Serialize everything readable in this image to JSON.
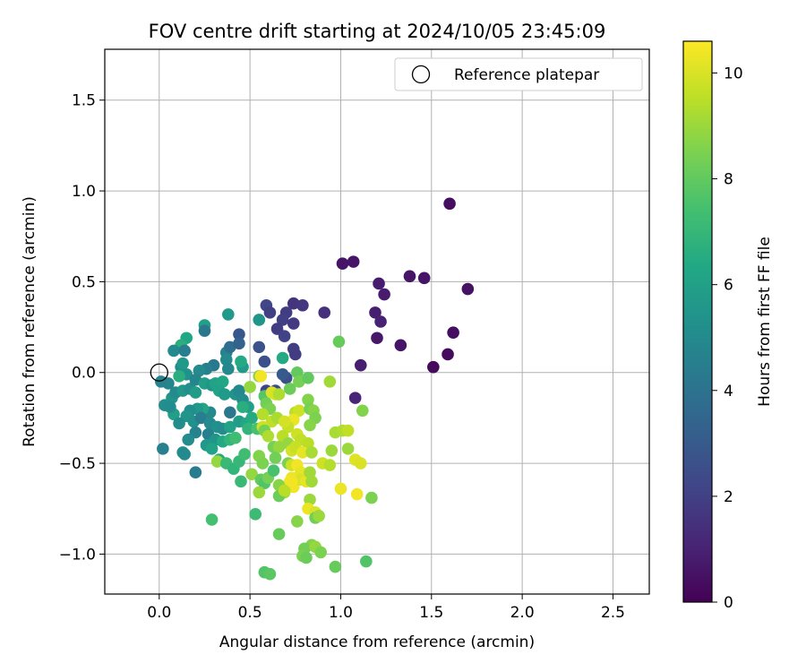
{
  "chart_data": {
    "type": "scatter",
    "title": "FOV centre drift starting at 2024/10/05 23:45:09",
    "xlabel": "Angular distance from reference (arcmin)",
    "ylabel": "Rotation from reference (arcmin)",
    "xlim": [
      -0.3,
      2.7
    ],
    "ylim": [
      -1.22,
      1.78
    ],
    "x_ticks": [
      0.0,
      0.5,
      1.0,
      1.5,
      2.0,
      2.5
    ],
    "x_tick_labels": [
      "0.0",
      "0.5",
      "1.0",
      "1.5",
      "2.0",
      "2.5"
    ],
    "y_ticks": [
      -1.0,
      -0.5,
      0.0,
      0.5,
      1.0,
      1.5
    ],
    "y_tick_labels": [
      "−1.0",
      "−0.5",
      "0.0",
      "0.5",
      "1.0",
      "1.5"
    ],
    "grid": true,
    "legend": {
      "position": "upper right",
      "entries": [
        "Reference platepar"
      ]
    },
    "reference_point": {
      "label": "Reference platepar",
      "x": 0.0,
      "y": 0.0
    },
    "colorbar": {
      "label": "Hours from first FF file",
      "colormap": "viridis",
      "range": [
        0,
        10.6
      ],
      "ticks": [
        0,
        2,
        4,
        6,
        8,
        10
      ],
      "tick_labels": [
        "0",
        "2",
        "4",
        "6",
        "8",
        "10"
      ]
    },
    "points": [
      {
        "x": 1.6,
        "y": 0.93,
        "h": 0.4
      },
      {
        "x": 1.01,
        "y": 0.6,
        "h": 0.6
      },
      {
        "x": 1.07,
        "y": 0.61,
        "h": 0.6
      },
      {
        "x": 1.21,
        "y": 0.49,
        "h": 0.8
      },
      {
        "x": 1.24,
        "y": 0.43,
        "h": 0.8
      },
      {
        "x": 1.38,
        "y": 0.53,
        "h": 0.6
      },
      {
        "x": 1.46,
        "y": 0.52,
        "h": 0.6
      },
      {
        "x": 1.7,
        "y": 0.46,
        "h": 0.5
      },
      {
        "x": 1.19,
        "y": 0.33,
        "h": 0.9
      },
      {
        "x": 1.22,
        "y": 0.28,
        "h": 1.0
      },
      {
        "x": 1.62,
        "y": 0.22,
        "h": 0.4
      },
      {
        "x": 1.2,
        "y": 0.19,
        "h": 0.7
      },
      {
        "x": 1.33,
        "y": 0.15,
        "h": 0.6
      },
      {
        "x": 1.59,
        "y": 0.1,
        "h": 0.3
      },
      {
        "x": 1.51,
        "y": 0.03,
        "h": 0.3
      },
      {
        "x": 1.11,
        "y": 0.04,
        "h": 0.9
      },
      {
        "x": 1.08,
        "y": -0.14,
        "h": 1.1
      },
      {
        "x": 0.91,
        "y": 0.33,
        "h": 1.5
      },
      {
        "x": 0.74,
        "y": 0.38,
        "h": 1.6
      },
      {
        "x": 0.79,
        "y": 0.37,
        "h": 1.7
      },
      {
        "x": 0.59,
        "y": 0.37,
        "h": 2.2
      },
      {
        "x": 0.61,
        "y": 0.33,
        "h": 2.0
      },
      {
        "x": 0.7,
        "y": 0.33,
        "h": 1.9
      },
      {
        "x": 0.68,
        "y": 0.29,
        "h": 2.0
      },
      {
        "x": 0.74,
        "y": 0.27,
        "h": 1.8
      },
      {
        "x": 0.65,
        "y": 0.24,
        "h": 1.9
      },
      {
        "x": 0.69,
        "y": 0.2,
        "h": 2.1
      },
      {
        "x": 0.55,
        "y": 0.29,
        "h": 5.5
      },
      {
        "x": 0.44,
        "y": 0.21,
        "h": 2.9
      },
      {
        "x": 0.55,
        "y": 0.14,
        "h": 2.7
      },
      {
        "x": 0.74,
        "y": 0.13,
        "h": 1.9
      },
      {
        "x": 0.75,
        "y": 0.1,
        "h": 1.9
      },
      {
        "x": 0.58,
        "y": 0.06,
        "h": 2.6
      },
      {
        "x": 0.68,
        "y": 0.08,
        "h": 6.4
      },
      {
        "x": 0.7,
        "y": -0.03,
        "h": 2.5
      },
      {
        "x": 0.68,
        "y": -0.01,
        "h": 3.0
      },
      {
        "x": 0.59,
        "y": -0.1,
        "h": 2.2
      },
      {
        "x": 0.64,
        "y": -0.1,
        "h": 2.4
      },
      {
        "x": 0.38,
        "y": 0.32,
        "h": 5.7
      },
      {
        "x": 0.25,
        "y": 0.26,
        "h": 6.0
      },
      {
        "x": 0.25,
        "y": 0.23,
        "h": 4.2
      },
      {
        "x": 0.37,
        "y": 0.11,
        "h": 4.7
      },
      {
        "x": 0.39,
        "y": 0.14,
        "h": 3.8
      },
      {
        "x": 0.44,
        "y": 0.16,
        "h": 3.3
      },
      {
        "x": 0.15,
        "y": 0.19,
        "h": 6.3
      },
      {
        "x": 0.12,
        "y": 0.15,
        "h": 6.6
      },
      {
        "x": 0.08,
        "y": 0.12,
        "h": 5.0
      },
      {
        "x": 0.14,
        "y": 0.12,
        "h": 4.5
      },
      {
        "x": 0.37,
        "y": 0.07,
        "h": 5.0
      },
      {
        "x": 0.46,
        "y": 0.03,
        "h": 5.7
      },
      {
        "x": 0.45,
        "y": 0.06,
        "h": 6.4
      },
      {
        "x": 0.38,
        "y": 0.02,
        "h": 4.9
      },
      {
        "x": 0.3,
        "y": 0.04,
        "h": 4.3
      },
      {
        "x": 0.26,
        "y": 0.02,
        "h": 4.6
      },
      {
        "x": 0.22,
        "y": 0.01,
        "h": 5.0
      },
      {
        "x": 0.12,
        "y": 0.03,
        "h": 5.0
      },
      {
        "x": 0.15,
        "y": -0.01,
        "h": 5.3
      },
      {
        "x": 0.13,
        "y": 0.05,
        "h": 5.6
      },
      {
        "x": 0.11,
        "y": -0.02,
        "h": 6.6
      },
      {
        "x": 0.05,
        "y": -0.06,
        "h": 4.8
      },
      {
        "x": 0.01,
        "y": -0.05,
        "h": 4.7
      },
      {
        "x": 0.03,
        "y": -0.18,
        "h": 5.2
      },
      {
        "x": 0.07,
        "y": -0.14,
        "h": 5.5
      },
      {
        "x": 0.09,
        "y": -0.11,
        "h": 5.0
      },
      {
        "x": 0.13,
        "y": -0.1,
        "h": 5.6
      },
      {
        "x": 0.17,
        "y": -0.09,
        "h": 5.2
      },
      {
        "x": 0.2,
        "y": -0.04,
        "h": 4.8
      },
      {
        "x": 0.2,
        "y": -0.11,
        "h": 5.8
      },
      {
        "x": 0.25,
        "y": -0.06,
        "h": 5.9
      },
      {
        "x": 0.29,
        "y": -0.07,
        "h": 5.5
      },
      {
        "x": 0.31,
        "y": -0.06,
        "h": 6.1
      },
      {
        "x": 0.35,
        "y": -0.05,
        "h": 6.3
      },
      {
        "x": 0.33,
        "y": -0.1,
        "h": 6.1
      },
      {
        "x": 0.36,
        "y": -0.12,
        "h": 5.7
      },
      {
        "x": 0.42,
        "y": -0.12,
        "h": 5.4
      },
      {
        "x": 0.44,
        "y": -0.1,
        "h": 4.9
      },
      {
        "x": 0.46,
        "y": -0.15,
        "h": 5.1
      },
      {
        "x": 0.49,
        "y": -0.19,
        "h": 6.0
      },
      {
        "x": 0.46,
        "y": -0.19,
        "h": 6.6
      },
      {
        "x": 0.39,
        "y": -0.22,
        "h": 4.2
      },
      {
        "x": 0.28,
        "y": -0.22,
        "h": 4.9
      },
      {
        "x": 0.24,
        "y": -0.2,
        "h": 6.2
      },
      {
        "x": 0.21,
        "y": -0.2,
        "h": 5.6
      },
      {
        "x": 0.17,
        "y": -0.21,
        "h": 5.2
      },
      {
        "x": 0.15,
        "y": -0.24,
        "h": 5.5
      },
      {
        "x": 0.08,
        "y": -0.23,
        "h": 6.0
      },
      {
        "x": 0.06,
        "y": -0.19,
        "h": 5.1
      },
      {
        "x": 0.11,
        "y": -0.28,
        "h": 5.1
      },
      {
        "x": 0.19,
        "y": -0.27,
        "h": 5.3
      },
      {
        "x": 0.23,
        "y": -0.25,
        "h": 4.5
      },
      {
        "x": 0.28,
        "y": -0.28,
        "h": 5.0
      },
      {
        "x": 0.32,
        "y": -0.3,
        "h": 5.3
      },
      {
        "x": 0.35,
        "y": -0.31,
        "h": 5.1
      },
      {
        "x": 0.39,
        "y": -0.3,
        "h": 6.1
      },
      {
        "x": 0.44,
        "y": -0.27,
        "h": 5.8
      },
      {
        "x": 0.48,
        "y": -0.28,
        "h": 6.3
      },
      {
        "x": 0.51,
        "y": -0.25,
        "h": 6.5
      },
      {
        "x": 0.49,
        "y": -0.31,
        "h": 6.9
      },
      {
        "x": 0.54,
        "y": -0.31,
        "h": 7.5
      },
      {
        "x": 0.27,
        "y": -0.34,
        "h": 4.6
      },
      {
        "x": 0.2,
        "y": -0.33,
        "h": 4.7
      },
      {
        "x": 0.16,
        "y": -0.37,
        "h": 5.1
      },
      {
        "x": 0.31,
        "y": -0.37,
        "h": 5.5
      },
      {
        "x": 0.26,
        "y": -0.4,
        "h": 5.6
      },
      {
        "x": 0.29,
        "y": -0.42,
        "h": 6.1
      },
      {
        "x": 0.35,
        "y": -0.38,
        "h": 6.4
      },
      {
        "x": 0.39,
        "y": -0.37,
        "h": 6.9
      },
      {
        "x": 0.42,
        "y": -0.36,
        "h": 7.3
      },
      {
        "x": 0.02,
        "y": -0.42,
        "h": 4.6
      },
      {
        "x": 0.13,
        "y": -0.44,
        "h": 5.2
      },
      {
        "x": 0.14,
        "y": -0.45,
        "h": 5.0
      },
      {
        "x": 0.2,
        "y": -0.55,
        "h": 4.4
      },
      {
        "x": 0.33,
        "y": -0.48,
        "h": 6.5
      },
      {
        "x": 0.32,
        "y": -0.49,
        "h": 8.9
      },
      {
        "x": 0.37,
        "y": -0.5,
        "h": 7.1
      },
      {
        "x": 0.41,
        "y": -0.53,
        "h": 6.9
      },
      {
        "x": 0.44,
        "y": -0.49,
        "h": 7.0
      },
      {
        "x": 0.47,
        "y": -0.45,
        "h": 7.3
      },
      {
        "x": 0.45,
        "y": -0.6,
        "h": 7.1
      },
      {
        "x": 0.5,
        "y": -0.08,
        "h": 8.9
      },
      {
        "x": 0.55,
        "y": -0.02,
        "h": 8.6
      },
      {
        "x": 0.56,
        "y": -0.02,
        "h": 10.4
      },
      {
        "x": 0.58,
        "y": -0.13,
        "h": 7.8
      },
      {
        "x": 0.59,
        "y": -0.17,
        "h": 8.3
      },
      {
        "x": 0.61,
        "y": -0.2,
        "h": 8.5
      },
      {
        "x": 0.57,
        "y": -0.23,
        "h": 9.4
      },
      {
        "x": 0.62,
        "y": -0.27,
        "h": 9.6
      },
      {
        "x": 0.65,
        "y": -0.25,
        "h": 9.2
      },
      {
        "x": 0.57,
        "y": -0.3,
        "h": 9.8
      },
      {
        "x": 0.58,
        "y": -0.32,
        "h": 8.4
      },
      {
        "x": 0.6,
        "y": -0.35,
        "h": 9.3
      },
      {
        "x": 0.62,
        "y": -0.11,
        "h": 10.1
      },
      {
        "x": 0.64,
        "y": -0.12,
        "h": 9.9
      },
      {
        "x": 0.66,
        "y": -0.12,
        "h": 9.3
      },
      {
        "x": 0.72,
        "y": -0.09,
        "h": 8.2
      },
      {
        "x": 0.76,
        "y": 0.0,
        "h": 8.0
      },
      {
        "x": 0.77,
        "y": -0.05,
        "h": 8.4
      },
      {
        "x": 0.82,
        "y": -0.03,
        "h": 8.0
      },
      {
        "x": 0.82,
        "y": -0.15,
        "h": 8.6
      },
      {
        "x": 0.75,
        "y": -0.22,
        "h": 9.5
      },
      {
        "x": 0.77,
        "y": -0.21,
        "h": 9.8
      },
      {
        "x": 0.74,
        "y": -0.26,
        "h": 10.3
      },
      {
        "x": 0.71,
        "y": -0.3,
        "h": 9.7
      },
      {
        "x": 0.69,
        "y": -0.27,
        "h": 9.9
      },
      {
        "x": 0.68,
        "y": -0.35,
        "h": 9.5
      },
      {
        "x": 0.76,
        "y": -0.34,
        "h": 9.8
      },
      {
        "x": 0.78,
        "y": -0.37,
        "h": 9.6
      },
      {
        "x": 0.83,
        "y": -0.2,
        "h": 8.4
      },
      {
        "x": 0.85,
        "y": -0.21,
        "h": 8.7
      },
      {
        "x": 0.86,
        "y": -0.25,
        "h": 8.5
      },
      {
        "x": 0.83,
        "y": -0.29,
        "h": 8.7
      },
      {
        "x": 0.82,
        "y": -0.39,
        "h": 9.5
      },
      {
        "x": 0.94,
        "y": -0.05,
        "h": 9.1
      },
      {
        "x": 0.99,
        "y": 0.17,
        "h": 8.1
      },
      {
        "x": 0.97,
        "y": -0.33,
        "h": 9.2
      },
      {
        "x": 1.01,
        "y": -0.32,
        "h": 9.3
      },
      {
        "x": 1.04,
        "y": -0.32,
        "h": 9.6
      },
      {
        "x": 1.12,
        "y": -0.21,
        "h": 8.6
      },
      {
        "x": 1.04,
        "y": -0.42,
        "h": 9.0
      },
      {
        "x": 1.08,
        "y": -0.48,
        "h": 10.1
      },
      {
        "x": 1.11,
        "y": -0.5,
        "h": 10.0
      },
      {
        "x": 0.95,
        "y": -0.43,
        "h": 9.0
      },
      {
        "x": 0.9,
        "y": -0.5,
        "h": 9.8
      },
      {
        "x": 0.94,
        "y": -0.51,
        "h": 9.4
      },
      {
        "x": 0.63,
        "y": -0.41,
        "h": 8.4
      },
      {
        "x": 0.66,
        "y": -0.41,
        "h": 8.9
      },
      {
        "x": 0.71,
        "y": -0.39,
        "h": 8.9
      },
      {
        "x": 0.73,
        "y": -0.43,
        "h": 9.9
      },
      {
        "x": 0.75,
        "y": -0.41,
        "h": 9.7
      },
      {
        "x": 0.79,
        "y": -0.44,
        "h": 10.2
      },
      {
        "x": 0.84,
        "y": -0.44,
        "h": 9.2
      },
      {
        "x": 0.55,
        "y": -0.46,
        "h": 8.6
      },
      {
        "x": 0.57,
        "y": -0.5,
        "h": 8.5
      },
      {
        "x": 0.64,
        "y": -0.47,
        "h": 8.3
      },
      {
        "x": 0.71,
        "y": -0.5,
        "h": 8.5
      },
      {
        "x": 0.73,
        "y": -0.51,
        "h": 9.8
      },
      {
        "x": 0.76,
        "y": -0.51,
        "h": 10.4
      },
      {
        "x": 0.78,
        "y": -0.55,
        "h": 10.2
      },
      {
        "x": 0.73,
        "y": -0.58,
        "h": 10.3
      },
      {
        "x": 0.72,
        "y": -0.6,
        "h": 10.5
      },
      {
        "x": 0.74,
        "y": -0.63,
        "h": 10.4
      },
      {
        "x": 0.78,
        "y": -0.59,
        "h": 10.0
      },
      {
        "x": 0.81,
        "y": -0.6,
        "h": 10.2
      },
      {
        "x": 0.84,
        "y": -0.6,
        "h": 9.1
      },
      {
        "x": 0.83,
        "y": -0.55,
        "h": 9.1
      },
      {
        "x": 0.51,
        "y": -0.56,
        "h": 8.9
      },
      {
        "x": 0.56,
        "y": -0.59,
        "h": 8.0
      },
      {
        "x": 0.58,
        "y": -0.61,
        "h": 7.7
      },
      {
        "x": 0.55,
        "y": -0.66,
        "h": 9.0
      },
      {
        "x": 0.6,
        "y": -0.58,
        "h": 8.4
      },
      {
        "x": 0.63,
        "y": -0.54,
        "h": 7.5
      },
      {
        "x": 0.66,
        "y": -0.62,
        "h": 8.7
      },
      {
        "x": 0.69,
        "y": -0.66,
        "h": 9.2
      },
      {
        "x": 0.66,
        "y": -0.68,
        "h": 8.2
      },
      {
        "x": 0.69,
        "y": -0.65,
        "h": 9.5
      },
      {
        "x": 0.73,
        "y": -0.6,
        "h": 10.4
      },
      {
        "x": 1.0,
        "y": -0.64,
        "h": 10.3
      },
      {
        "x": 1.09,
        "y": -0.67,
        "h": 10.4
      },
      {
        "x": 1.17,
        "y": -0.69,
        "h": 8.5
      },
      {
        "x": 0.83,
        "y": -0.7,
        "h": 9.0
      },
      {
        "x": 0.82,
        "y": -0.75,
        "h": 10.3
      },
      {
        "x": 0.86,
        "y": -0.77,
        "h": 10.0
      },
      {
        "x": 0.86,
        "y": -0.8,
        "h": 8.3
      },
      {
        "x": 0.76,
        "y": -0.82,
        "h": 8.7
      },
      {
        "x": 0.88,
        "y": -0.79,
        "h": 9.0
      },
      {
        "x": 0.29,
        "y": -0.81,
        "h": 7.4
      },
      {
        "x": 0.53,
        "y": -0.78,
        "h": 7.2
      },
      {
        "x": 0.66,
        "y": -0.89,
        "h": 8.1
      },
      {
        "x": 0.84,
        "y": -0.95,
        "h": 8.6
      },
      {
        "x": 0.8,
        "y": -0.97,
        "h": 8.3
      },
      {
        "x": 0.86,
        "y": -0.96,
        "h": 8.9
      },
      {
        "x": 0.89,
        "y": -0.99,
        "h": 8.5
      },
      {
        "x": 0.79,
        "y": -1.01,
        "h": 8.5
      },
      {
        "x": 0.81,
        "y": -1.02,
        "h": 8.2
      },
      {
        "x": 0.97,
        "y": -1.07,
        "h": 8.1
      },
      {
        "x": 1.14,
        "y": -1.04,
        "h": 7.7
      },
      {
        "x": 0.58,
        "y": -1.1,
        "h": 7.7
      },
      {
        "x": 0.61,
        "y": -1.11,
        "h": 7.9
      }
    ]
  }
}
